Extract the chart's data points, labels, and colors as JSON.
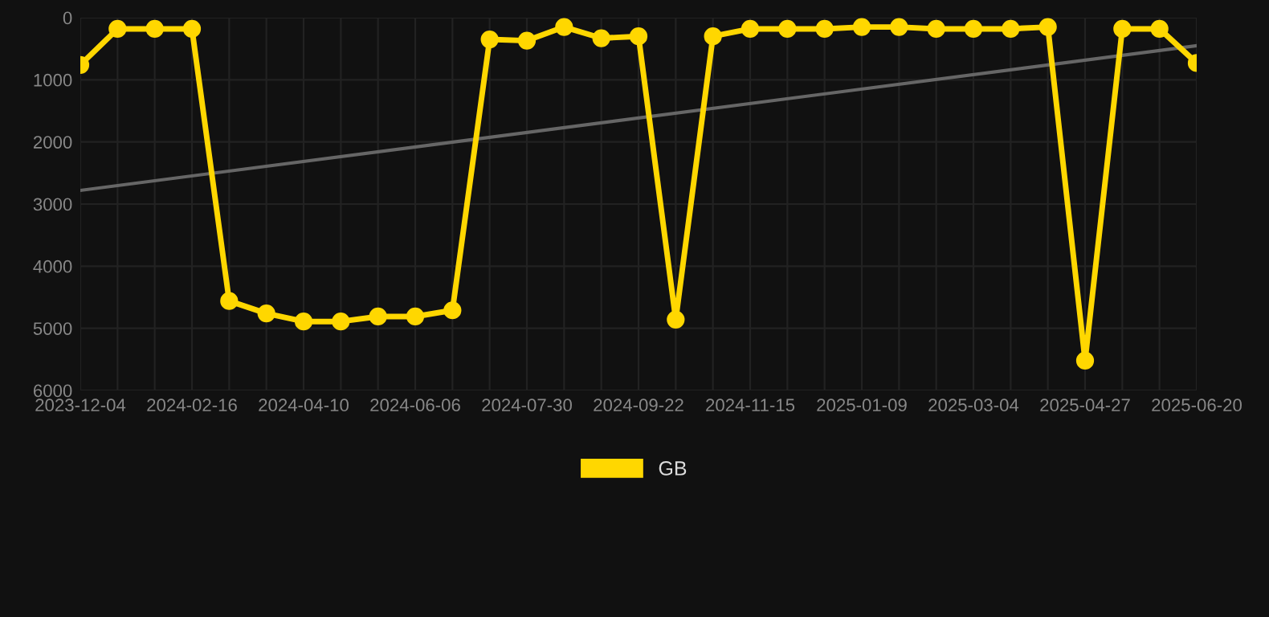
{
  "chart_data": {
    "type": "line",
    "categories": [
      "2023-12-04",
      null,
      null,
      "2024-02-16",
      null,
      null,
      "2024-04-10",
      null,
      null,
      "2024-06-06",
      null,
      null,
      "2024-07-30",
      null,
      null,
      "2024-09-22",
      null,
      null,
      "2024-11-15",
      null,
      null,
      "2025-01-09",
      null,
      null,
      "2025-03-04",
      null,
      null,
      "2025-04-27",
      null,
      null,
      "2025-06-20"
    ],
    "series": [
      {
        "name": "GB",
        "color": "#ffd700",
        "marker": "circle",
        "values": [
          760,
          180,
          180,
          180,
          4560,
          4760,
          4890,
          4890,
          4810,
          4810,
          4710,
          350,
          370,
          150,
          330,
          300,
          4860,
          300,
          180,
          180,
          180,
          150,
          150,
          180,
          180,
          180,
          150,
          5520,
          180,
          180,
          730
        ]
      },
      {
        "type": "line",
        "color": "#666666",
        "marker": "none",
        "values": [
          2780,
          null,
          null,
          null,
          null,
          null,
          null,
          null,
          null,
          null,
          null,
          null,
          null,
          null,
          null,
          null,
          null,
          null,
          null,
          null,
          null,
          null,
          null,
          null,
          null,
          null,
          null,
          null,
          null,
          null,
          450
        ]
      }
    ],
    "ylim": [
      6000,
      0
    ],
    "yticks": [
      0,
      1000,
      2000,
      3000,
      4000,
      5000,
      6000
    ],
    "grid": true,
    "legend": "bottom",
    "line_style": "solid"
  }
}
